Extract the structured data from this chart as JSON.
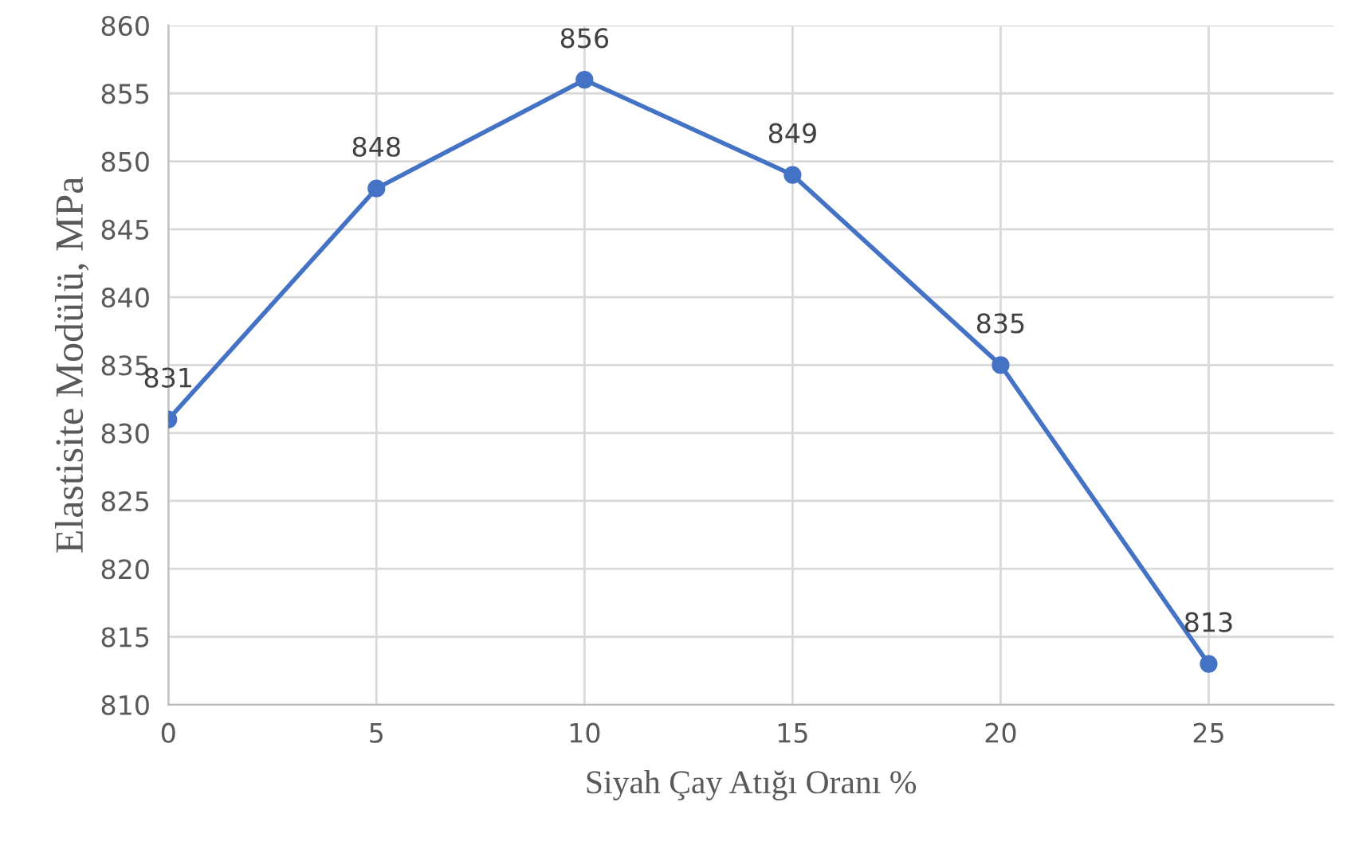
{
  "chart_data": {
    "type": "line",
    "xlabel": "Siyah Çay Atığı Oranı %",
    "ylabel": "Elastisite Modülü, MPa",
    "x": [
      0,
      5,
      10,
      15,
      20,
      25
    ],
    "values": [
      831,
      848,
      856,
      849,
      835,
      813
    ],
    "color": "#4472c4",
    "marker": "circle",
    "line_style": "solid",
    "data_labels": true,
    "xlim": [
      0,
      28
    ],
    "xticks": [
      0,
      5,
      10,
      15,
      20,
      25
    ],
    "ylim": [
      810,
      860
    ],
    "yticks": [
      810,
      815,
      820,
      825,
      830,
      835,
      840,
      845,
      850,
      855,
      860
    ],
    "grid": true
  }
}
